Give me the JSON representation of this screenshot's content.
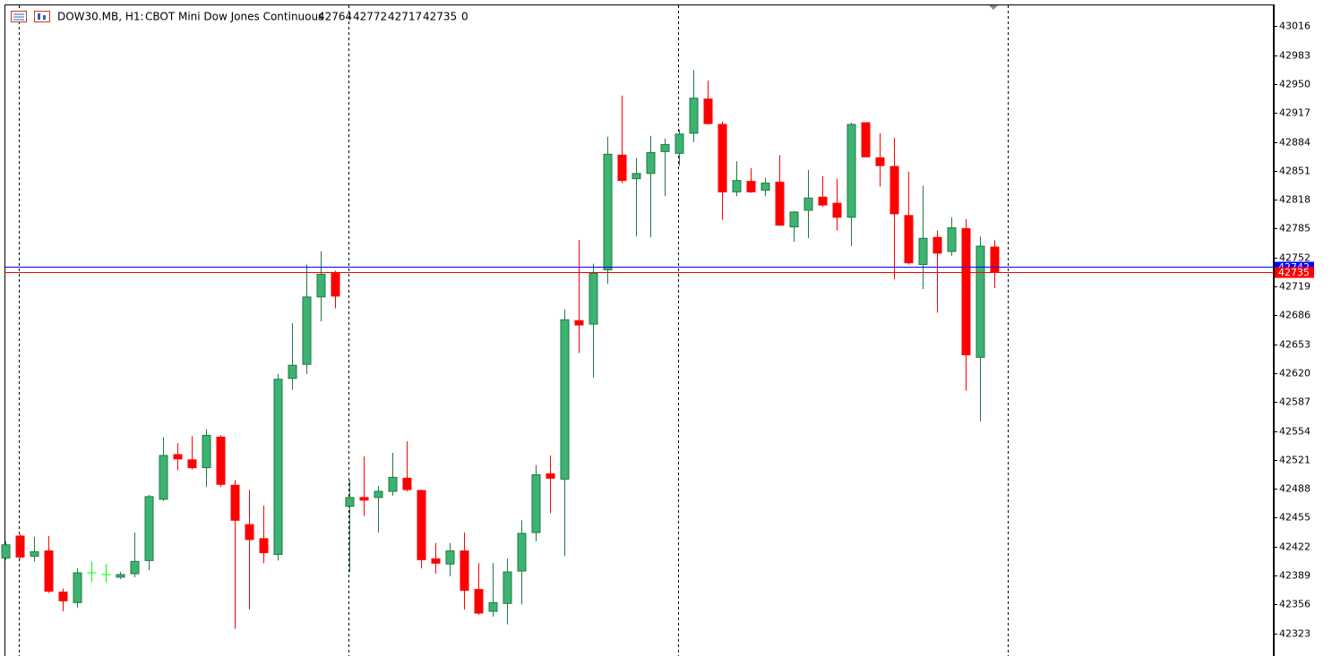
{
  "chart_data": {
    "type": "candlestick",
    "header": {
      "symbol": "DOW30.MB, H1:",
      "description": "CBOT Mini Dow Jones Continuous",
      "open": 42764,
      "high": 42772,
      "low": 42717,
      "close": 42735,
      "volume": 0
    },
    "open": [
      42409,
      42434,
      42411,
      42417,
      42370,
      42358,
      42392,
      42390,
      42387,
      42391,
      42406,
      42476,
      42527,
      42521,
      42512,
      42547,
      42492,
      42447,
      42431,
      42413,
      42614,
      42630,
      42707,
      42735,
      42468,
      42478,
      42478,
      42485,
      42500,
      42486,
      42408,
      42402,
      42417,
      42373,
      42348,
      42357,
      42394,
      42438,
      42505,
      42499,
      42680,
      42676,
      42738,
      42869,
      42842,
      42848,
      42873,
      42871,
      42894,
      42933,
      42904,
      42827,
      42839,
      42829,
      42838,
      42787,
      42806,
      42821,
      42814,
      42798,
      42906,
      42866,
      42856,
      42800,
      42744,
      42775,
      42759,
      42785,
      42638,
      42764
    ],
    "high": [
      42428,
      42436,
      42433,
      42434,
      42374,
      42397,
      42405,
      42402,
      42393,
      42438,
      42481,
      42547,
      42540,
      42548,
      42556,
      42549,
      42498,
      42487,
      42469,
      42619,
      42677,
      42744,
      42759,
      42737,
      42498,
      42525,
      42491,
      42529,
      42542,
      42487,
      42426,
      42426,
      42438,
      42403,
      42403,
      42408,
      42452,
      42515,
      42526,
      42693,
      42772,
      42745,
      42890,
      42937,
      42866,
      42891,
      42888,
      42898,
      42966,
      42954,
      42907,
      42862,
      42854,
      42843,
      42869,
      42805,
      42852,
      42845,
      42842,
      42906,
      42906,
      42894,
      42889,
      42850,
      42834,
      42783,
      42798,
      42796,
      42776,
      42772
    ],
    "low": [
      42407,
      42408,
      42405,
      42369,
      42348,
      42352,
      42382,
      42381,
      42385,
      42387,
      42395,
      42474,
      42509,
      42510,
      42490,
      42490,
      42328,
      42350,
      42403,
      42406,
      42601,
      42619,
      42679,
      42694,
      42393,
      42457,
      42438,
      42480,
      42485,
      42397,
      42391,
      42388,
      42350,
      42344,
      42342,
      42333,
      42356,
      42428,
      42460,
      42411,
      42643,
      42615,
      42722,
      42837,
      42776,
      42775,
      42822,
      42857,
      42884,
      42904,
      42795,
      42822,
      42826,
      42822,
      42788,
      42770,
      42774,
      42810,
      42783,
      42765,
      42867,
      42833,
      42727,
      42744,
      42716,
      42689,
      42754,
      42600,
      42565,
      42717
    ],
    "close": [
      42424,
      42410,
      42416,
      42371,
      42360,
      42392,
      42392,
      42390,
      42390,
      42405,
      42479,
      42526,
      42522,
      42512,
      42549,
      42493,
      42452,
      42430,
      42415,
      42613,
      42629,
      42707,
      42733,
      42708,
      42478,
      42475,
      42485,
      42501,
      42487,
      42407,
      42403,
      42417,
      42372,
      42346,
      42358,
      42393,
      42437,
      42504,
      42500,
      42681,
      42675,
      42734,
      42870,
      42840,
      42848,
      42872,
      42881,
      42893,
      42934,
      42905,
      42827,
      42840,
      42827,
      42837,
      42789,
      42804,
      42820,
      42812,
      42798,
      42904,
      42867,
      42857,
      42802,
      42746,
      42774,
      42757,
      42786,
      42641,
      42765,
      42735
    ],
    "up_color": "#3cb371",
    "up_line_color": "#1f7a44",
    "down_color": "#ff0000",
    "doji_color": "#00ff00",
    "ylim": [
      42297,
      43041
    ],
    "yticks": [
      43016,
      42983,
      42950,
      42917,
      42884,
      42851,
      42818,
      42785,
      42752,
      42719,
      42686,
      42653,
      42620,
      42587,
      42554,
      42521,
      42488,
      42455,
      42422,
      42389,
      42356,
      42323
    ],
    "price_lines": [
      {
        "value": 42742,
        "color": "#0000ff"
      },
      {
        "value": 42735,
        "color": "#ff0000"
      }
    ]
  }
}
